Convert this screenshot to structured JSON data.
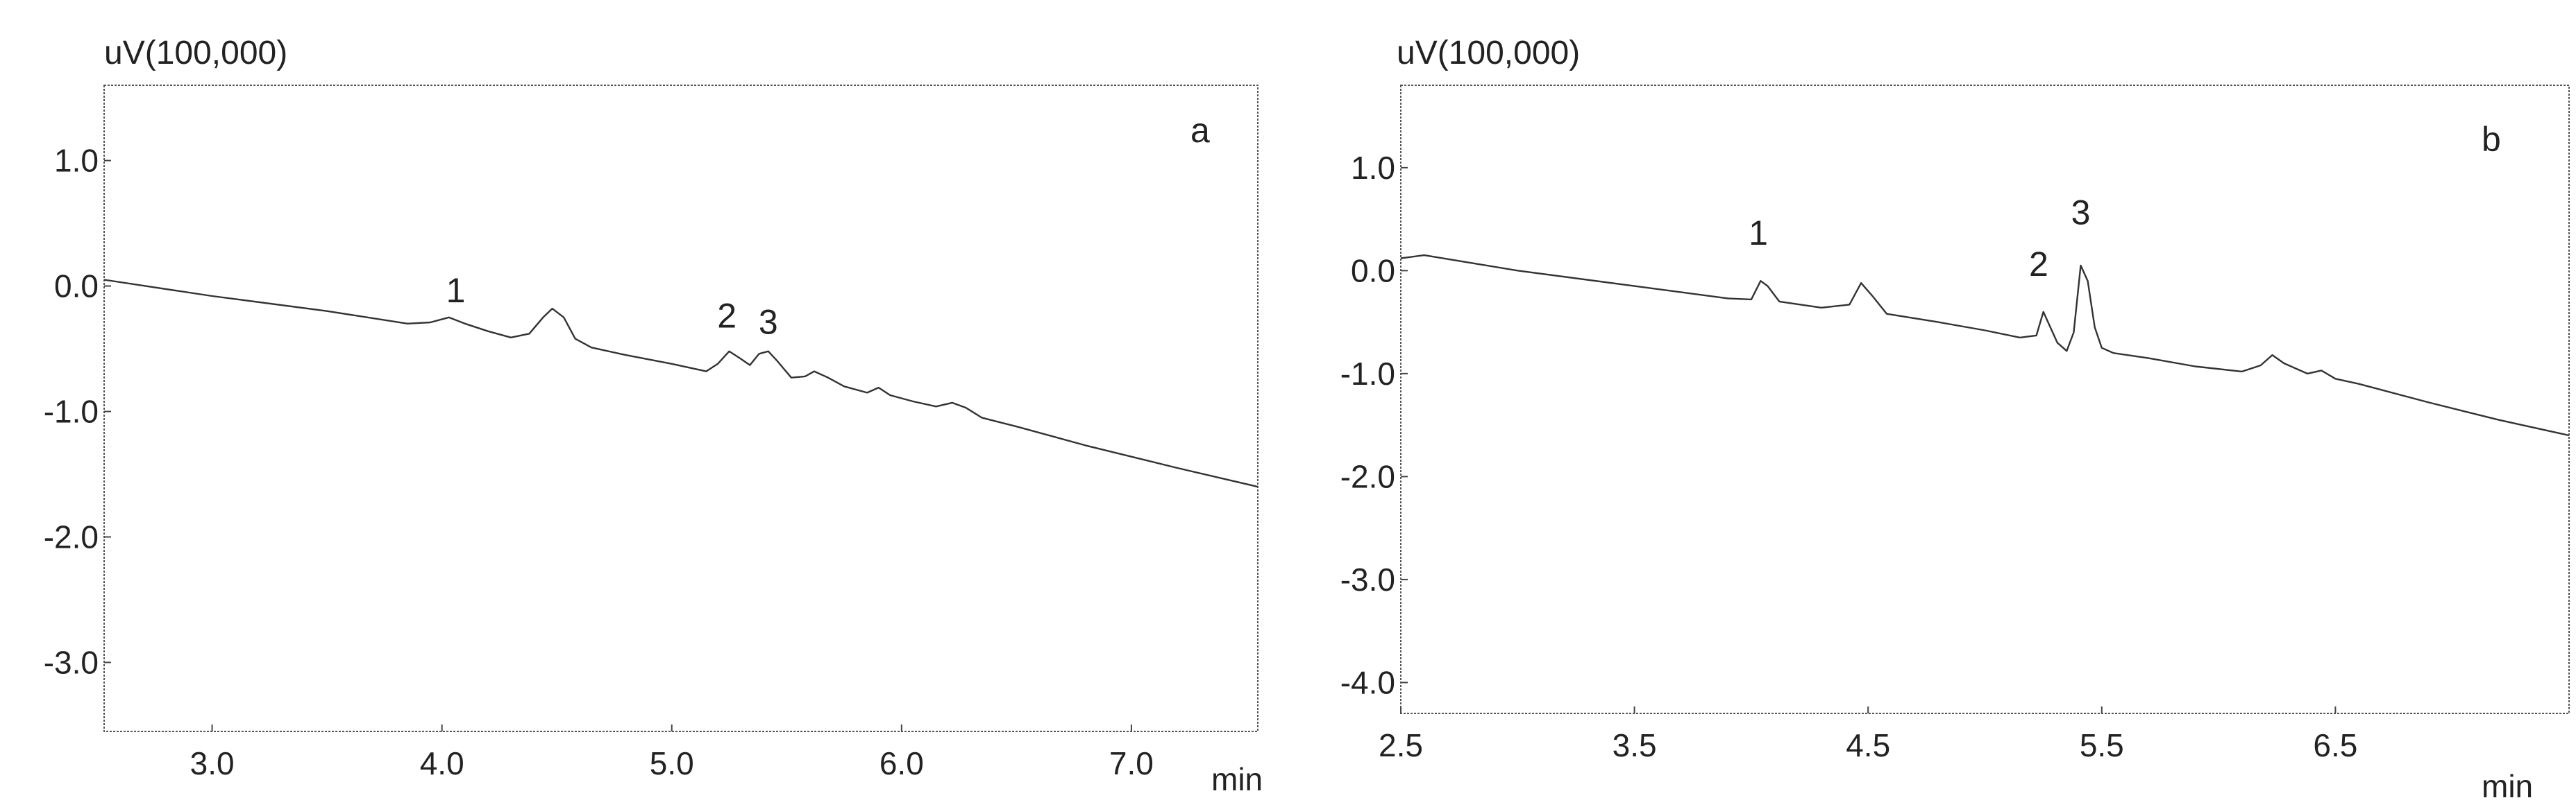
{
  "chart_data": [
    {
      "type": "line",
      "panel_label": "a",
      "ylabel": "uV(100,000)",
      "xunit": "min",
      "xlim": [
        2.53,
        7.55
      ],
      "ylim": [
        -3.55,
        1.6
      ],
      "xticks": [
        3.0,
        4.0,
        5.0,
        6.0,
        7.0
      ],
      "xtick_labels": [
        "3.0",
        "4.0",
        "5.0",
        "6.0",
        "7.0"
      ],
      "yticks": [
        1.0,
        0.0,
        -1.0,
        -2.0,
        -3.0
      ],
      "ytick_labels": [
        "1.0",
        "0.0",
        "-1.0",
        "-2.0",
        "-3.0"
      ],
      "grid": false,
      "series": [
        {
          "x": [
            2.53,
            3.0,
            3.5,
            3.85,
            3.95,
            4.03,
            4.1,
            4.2,
            4.3,
            4.38,
            4.44,
            4.48,
            4.53,
            4.58,
            4.65,
            4.8,
            5.0,
            5.15,
            5.2,
            5.25,
            5.3,
            5.34,
            5.38,
            5.42,
            5.46,
            5.52,
            5.58,
            5.62,
            5.68,
            5.75,
            5.85,
            5.9,
            5.95,
            6.05,
            6.15,
            6.22,
            6.28,
            6.35,
            6.5,
            6.8,
            7.2,
            7.55
          ],
          "y": [
            0.05,
            -0.08,
            -0.2,
            -0.3,
            -0.29,
            -0.25,
            -0.3,
            -0.36,
            -0.41,
            -0.38,
            -0.25,
            -0.18,
            -0.25,
            -0.42,
            -0.49,
            -0.55,
            -0.62,
            -0.68,
            -0.62,
            -0.52,
            -0.58,
            -0.63,
            -0.54,
            -0.52,
            -0.6,
            -0.73,
            -0.72,
            -0.68,
            -0.73,
            -0.8,
            -0.85,
            -0.81,
            -0.87,
            -0.92,
            -0.96,
            -0.93,
            -0.97,
            -1.05,
            -1.12,
            -1.27,
            -1.45,
            -1.6
          ]
        }
      ],
      "annotations": [
        {
          "text": "1",
          "x": 4.06,
          "y": -0.13
        },
        {
          "text": "2",
          "x": 5.24,
          "y": -0.33
        },
        {
          "text": "3",
          "x": 5.42,
          "y": -0.38
        }
      ]
    },
    {
      "type": "line",
      "panel_label": "b",
      "ylabel": "uV(100,000)",
      "xunit": "min",
      "xlim": [
        2.5,
        7.5
      ],
      "ylim": [
        -4.3,
        1.8
      ],
      "xticks": [
        2.5,
        3.5,
        4.5,
        5.5,
        6.5
      ],
      "xtick_labels": [
        "2.5",
        "3.5",
        "4.5",
        "5.5",
        "6.5"
      ],
      "yticks": [
        1.0,
        0.0,
        -1.0,
        -2.0,
        -3.0,
        -4.0
      ],
      "ytick_labels": [
        "1.0",
        "0.0",
        "-1.0",
        "-2.0",
        "-3.0",
        "-4.0"
      ],
      "grid": false,
      "series": [
        {
          "x": [
            2.5,
            2.6,
            3.0,
            3.5,
            3.9,
            4.0,
            4.04,
            4.07,
            4.12,
            4.3,
            4.42,
            4.47,
            4.52,
            4.58,
            4.8,
            5.0,
            5.15,
            5.22,
            5.25,
            5.28,
            5.31,
            5.35,
            5.38,
            5.41,
            5.44,
            5.47,
            5.5,
            5.55,
            5.7,
            5.9,
            6.1,
            6.18,
            6.23,
            6.28,
            6.38,
            6.44,
            6.5,
            6.6,
            6.9,
            7.2,
            7.5
          ],
          "y": [
            0.12,
            0.15,
            0.0,
            -0.15,
            -0.27,
            -0.28,
            -0.1,
            -0.15,
            -0.3,
            -0.36,
            -0.33,
            -0.12,
            -0.25,
            -0.42,
            -0.5,
            -0.58,
            -0.65,
            -0.63,
            -0.4,
            -0.55,
            -0.7,
            -0.78,
            -0.6,
            0.05,
            -0.1,
            -0.55,
            -0.75,
            -0.8,
            -0.85,
            -0.93,
            -0.98,
            -0.92,
            -0.82,
            -0.9,
            -1.0,
            -0.97,
            -1.05,
            -1.1,
            -1.28,
            -1.45,
            -1.6
          ]
        }
      ],
      "annotations": [
        {
          "text": "1",
          "x": 4.03,
          "y": 0.25
        },
        {
          "text": "2",
          "x": 5.23,
          "y": -0.05
        },
        {
          "text": "3",
          "x": 5.41,
          "y": 0.45
        }
      ]
    }
  ]
}
